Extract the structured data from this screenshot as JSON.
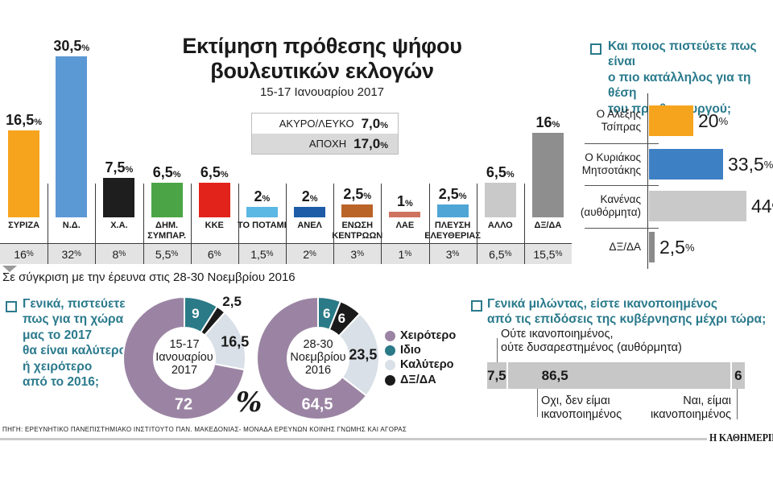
{
  "page": {
    "title": "Εκτίμηση πρόθεσης ψήφου\nβουλευτικών εκλογών",
    "subtitle": "15-17 Ιανουαρίου 2017",
    "comparison_note": "Σε σύγκριση με την έρευνα στις 28-30 Νοεμβρίου 2016",
    "percent": "%",
    "source": "ΠΗΓΗ: ΕΡΕΥΝΗΤΙΚΟ ΠΑΝΕΠΙΣΤΗΜΙΑΚΟ ΙΝΣΤΙΤΟΥΤΟ ΠΑΝ. ΜΑΚΕΔΟΝΙΑΣ- ΜΟΝΑΔΑ ΕΡΕΥΝΩΝ ΚΟΙΝΗΣ ΓΝΩΜΗΣ ΚΑΙ ΑΓΟΡΑΣ",
    "logo": "Η ΚΑΘΗΜΕΡΙΝΗ"
  },
  "chart_data": [
    {
      "id": "vote-intention",
      "type": "bar",
      "title": "Εκτίμηση πρόθεσης ψήφου βουλευτικών εκλογών",
      "subtitle": "15-17 Ιανουαρίου 2017",
      "unit": "%",
      "categories": [
        "ΣΥΡΙΖΑ",
        "Ν.Δ.",
        "Χ.Α.",
        "ΔΗΜ.\nΣΥΜΠΑΡ.",
        "ΚΚΕ",
        "ΤΟ ΠΟΤΑΜΙ",
        "ΑΝΕΛ",
        "ΕΝΩΣΗ\nΚΕΝΤΡΩΩΝ",
        "ΛΑΕ",
        "ΠΛΕΥΣΗ\nΕΛΕΥΘΕΡΙΑΣ",
        "ΑΛΛΟ",
        "ΔΞ/ΔΑ"
      ],
      "colors": [
        "#F6A41D",
        "#5B99D5",
        "#1E1E1E",
        "#4BA546",
        "#E2231B",
        "#5BB7E3",
        "#1E5CA8",
        "#BA6428",
        "#CE7360",
        "#4FA5D5",
        "#C9C9C9",
        "#8E8E8E"
      ],
      "series": [
        {
          "name": "15-17 Ιανουαρίου 2017",
          "values": [
            16.5,
            30.5,
            7.5,
            6.5,
            6.5,
            2,
            2,
            2.5,
            1,
            2.5,
            6.5,
            16
          ],
          "display": [
            "16,5",
            "30,5",
            "7,5",
            "6,5",
            "6,5",
            "2",
            "2",
            "2,5",
            "1",
            "2,5",
            "6,5",
            "16"
          ]
        },
        {
          "name": "28-30 Νοεμβρίου 2016",
          "values": [
            16,
            32,
            8,
            5.5,
            6,
            1.5,
            2,
            3,
            1,
            3,
            6.5,
            15.5
          ],
          "display": [
            "16",
            "32",
            "8",
            "5,5",
            "6",
            "1,5",
            "2",
            "3",
            "1",
            "3",
            "6,5",
            "15,5"
          ]
        }
      ],
      "extra": [
        {
          "label": "ΑΚΥΡΟ/ΛΕΥΚΟ",
          "value": 7.0,
          "display": "7,0"
        },
        {
          "label": "ΑΠΟΧΗ",
          "value": 17.0,
          "display": "17,0"
        }
      ]
    },
    {
      "id": "pm-suitability",
      "type": "bar",
      "orientation": "horizontal",
      "question": "Και ποιος πιστεύετε πως είναι\nο πιο κατάλληλος για τη θέση\nτου πρωθυπουργού;",
      "unit": "%",
      "categories": [
        "Ο Αλέξης\nΤσίπρας",
        "Ο Κυριάκος\nΜητσοτάκης",
        "Κανένας\n(αυθόρμητα)",
        "ΔΞ/ΔΑ"
      ],
      "values": [
        20,
        33.5,
        44,
        2.5
      ],
      "display": [
        "20",
        "33,5",
        "44",
        "2,5"
      ],
      "colors": [
        "#F6A41D",
        "#3E80C4",
        "#C9C9C9",
        "#8A8A8A"
      ]
    },
    {
      "id": "outlook-2017",
      "type": "pie",
      "question": "Γενικά, πιστεύετε\nπως για τη χώρα\nμας το 2017\nθα είναι καλύτερο\nή χειρότερο\nαπό το 2016;",
      "unit": "%",
      "legend": [
        {
          "label": "Χειρότερο",
          "color": "#9B84A3"
        },
        {
          "label": "Ιδιο",
          "color": "#2A7A87"
        },
        {
          "label": "Καλύτερο",
          "color": "#D9E0E7"
        },
        {
          "label": "ΔΞ/ΔΑ",
          "color": "#1A1A1A"
        }
      ],
      "donuts": [
        {
          "center_label": "15-17\nΙανουαρίου\n2017",
          "segments": [
            {
              "label": "Ιδιο",
              "value": 9,
              "display": "9",
              "color": "#2A7A87",
              "label_angle": 14,
              "label_r": 57,
              "label_color": "#ffffff",
              "label_size": 17
            },
            {
              "label": "ΔΞ/ΔΑ",
              "value": 2.5,
              "display": "2,5",
              "color": "#1A1A1A",
              "label_angle": 40,
              "label_r": 92,
              "label_color": "#1a1a1a",
              "label_size": 17
            },
            {
              "label": "Καλύτερο",
              "value": 16.5,
              "display": "16,5",
              "color": "#D9E0E7",
              "label_angle": 72,
              "label_r": 66,
              "label_color": "#1a1a1a",
              "label_size": 18
            },
            {
              "label": "Χειρότερο",
              "value": 72,
              "display": "72",
              "color": "#9B84A3",
              "label_angle": 181,
              "label_r": 58,
              "label_color": "#ffffff",
              "label_size": 20
            }
          ]
        },
        {
          "center_label": "28-30\nΝοεμβρίου\n2016",
          "segments": [
            {
              "label": "Ιδιο",
              "value": 6,
              "display": "6",
              "color": "#2A7A87",
              "label_angle": 11,
              "label_r": 56,
              "label_color": "#ffffff",
              "label_size": 17
            },
            {
              "label": "ΔΞ/ΔΑ",
              "value": 6,
              "display": "6",
              "color": "#1A1A1A",
              "label_angle": 31,
              "label_r": 57,
              "label_color": "#ffffff",
              "label_size": 17
            },
            {
              "label": "Καλύτερο",
              "value": 23.5,
              "display": "23,5",
              "color": "#D9E0E7",
              "label_angle": 86,
              "label_r": 56,
              "label_color": "#1a1a1a",
              "label_size": 18
            },
            {
              "label": "Χειρότερο",
              "value": 64.5,
              "display": "64,5",
              "color": "#9B84A3",
              "label_angle": 181,
              "label_r": 58,
              "label_color": "#ffffff",
              "label_size": 20
            }
          ]
        }
      ]
    },
    {
      "id": "government-satisfaction",
      "type": "bar",
      "subtype": "stacked",
      "question": "Γενικά μιλώντας, είστε ικανοποιημένος\nαπό τις επιδόσεις της κυβέρνησης μέχρι τώρα;",
      "unit": "%",
      "color": "#C7C7C7",
      "segments": [
        {
          "label": "Ούτε ικανοποιημένος,\nούτε δυσαρεστημένος (αυθόρμητα)",
          "value": 7.5,
          "display": "7,5"
        },
        {
          "label": "Οχι, δεν είμαι\nικανοποιημένος",
          "value": 86.5,
          "display": "86,5"
        },
        {
          "label": "Ναι, είμαι\nικανοποιημένος",
          "value": 6,
          "display": "6"
        }
      ]
    }
  ]
}
